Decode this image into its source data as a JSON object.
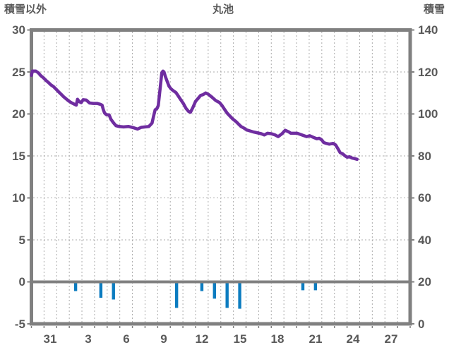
{
  "header": {
    "left_axis_title": "積雪以外",
    "chart_title": "丸池",
    "right_axis_title": "積雪"
  },
  "chart_data": {
    "type": "line+bar",
    "title": "丸池",
    "left_axis": {
      "title": "積雪以外",
      "ticks": [
        "30",
        "25",
        "20",
        "15",
        "10",
        "5",
        "0",
        "-5"
      ],
      "max": 30,
      "min": -5,
      "gridline_values": [
        25,
        20,
        15,
        10,
        5
      ],
      "zero_line_value": 0
    },
    "right_axis": {
      "title": "積雪",
      "ticks": [
        "140",
        "120",
        "100",
        "80",
        "60",
        "40",
        "20",
        "0"
      ],
      "max": 140,
      "min": 0
    },
    "x_axis": {
      "unit": "day",
      "num_days": 30,
      "start_day": "12/30",
      "tick_labels": [
        "31",
        "3",
        "6",
        "9",
        "12",
        "15",
        "18",
        "21",
        "24",
        "27"
      ],
      "tick_band_indices": [
        1,
        4,
        7,
        10,
        13,
        16,
        19,
        22,
        25,
        28
      ],
      "gridlines": "daily-dashed"
    },
    "line_series": {
      "name": "積雪",
      "axis": "right",
      "color": "#6F2DA0",
      "points_t_cm": [
        [
          0.0,
          118.4
        ],
        [
          0.08,
          120.4
        ],
        [
          0.35,
          120.4
        ],
        [
          0.55,
          119.6
        ],
        [
          0.75,
          118.2
        ],
        [
          0.95,
          117.2
        ],
        [
          1.15,
          116.0
        ],
        [
          1.35,
          115.0
        ],
        [
          1.55,
          113.8
        ],
        [
          1.75,
          113.0
        ],
        [
          1.95,
          111.8
        ],
        [
          2.15,
          110.6
        ],
        [
          2.35,
          109.4
        ],
        [
          2.55,
          108.2
        ],
        [
          2.75,
          107.2
        ],
        [
          2.95,
          106.2
        ],
        [
          3.15,
          105.4
        ],
        [
          3.35,
          104.8
        ],
        [
          3.55,
          104.2
        ],
        [
          3.65,
          107.0
        ],
        [
          3.8,
          105.8
        ],
        [
          3.95,
          105.4
        ],
        [
          4.1,
          106.8
        ],
        [
          4.35,
          106.6
        ],
        [
          4.6,
          105.2
        ],
        [
          4.9,
          105.0
        ],
        [
          5.2,
          105.0
        ],
        [
          5.45,
          104.6
        ],
        [
          5.6,
          104.2
        ],
        [
          5.7,
          102.0
        ],
        [
          5.8,
          100.4
        ],
        [
          5.95,
          99.6
        ],
        [
          6.15,
          99.6
        ],
        [
          6.3,
          97.4
        ],
        [
          6.5,
          95.8
        ],
        [
          6.7,
          94.4
        ],
        [
          6.95,
          94.0
        ],
        [
          7.3,
          93.8
        ],
        [
          7.7,
          94.0
        ],
        [
          8.1,
          93.4
        ],
        [
          8.4,
          92.8
        ],
        [
          8.7,
          93.6
        ],
        [
          9.0,
          93.8
        ],
        [
          9.3,
          94.0
        ],
        [
          9.55,
          95.6
        ],
        [
          9.7,
          99.6
        ],
        [
          9.8,
          102.0
        ],
        [
          9.95,
          102.6
        ],
        [
          10.05,
          104.0
        ],
        [
          10.15,
          109.6
        ],
        [
          10.25,
          115.2
        ],
        [
          10.33,
          119.6
        ],
        [
          10.42,
          120.4
        ],
        [
          10.5,
          120.0
        ],
        [
          10.6,
          118.0
        ],
        [
          10.75,
          115.6
        ],
        [
          10.9,
          113.2
        ],
        [
          11.05,
          112.0
        ],
        [
          11.25,
          111.0
        ],
        [
          11.45,
          110.2
        ],
        [
          11.65,
          108.4
        ],
        [
          11.85,
          106.6
        ],
        [
          12.05,
          104.8
        ],
        [
          12.25,
          102.6
        ],
        [
          12.45,
          101.2
        ],
        [
          12.6,
          100.8
        ],
        [
          12.8,
          103.2
        ],
        [
          13.0,
          106.0
        ],
        [
          13.2,
          107.4
        ],
        [
          13.4,
          108.8
        ],
        [
          13.6,
          109.2
        ],
        [
          13.8,
          110.0
        ],
        [
          14.0,
          109.4
        ],
        [
          14.3,
          108.0
        ],
        [
          14.6,
          106.4
        ],
        [
          14.9,
          105.4
        ],
        [
          15.1,
          104.0
        ],
        [
          15.3,
          102.2
        ],
        [
          15.5,
          100.4
        ],
        [
          15.75,
          98.8
        ],
        [
          15.95,
          97.6
        ],
        [
          16.2,
          96.4
        ],
        [
          16.4,
          95.2
        ],
        [
          16.6,
          94.0
        ],
        [
          16.85,
          93.2
        ],
        [
          17.05,
          92.4
        ],
        [
          17.6,
          91.4
        ],
        [
          18.2,
          90.6
        ],
        [
          18.45,
          90.0
        ],
        [
          18.7,
          90.8
        ],
        [
          19.0,
          90.6
        ],
        [
          19.3,
          90.0
        ],
        [
          19.55,
          89.2
        ],
        [
          19.85,
          90.6
        ],
        [
          20.0,
          91.6
        ],
        [
          20.1,
          92.2
        ],
        [
          20.4,
          91.4
        ],
        [
          20.55,
          90.8
        ],
        [
          21.05,
          90.8
        ],
        [
          21.5,
          89.8
        ],
        [
          21.8,
          89.2
        ],
        [
          22.05,
          89.6
        ],
        [
          22.35,
          88.8
        ],
        [
          22.6,
          88.2
        ],
        [
          22.8,
          88.4
        ],
        [
          23.0,
          87.6
        ],
        [
          23.15,
          86.4
        ],
        [
          23.35,
          86.0
        ],
        [
          23.6,
          85.6
        ],
        [
          23.9,
          86.0
        ],
        [
          24.1,
          85.2
        ],
        [
          24.3,
          83.2
        ],
        [
          24.45,
          81.6
        ],
        [
          24.65,
          81.0
        ],
        [
          24.85,
          80.0
        ],
        [
          25.0,
          79.4
        ],
        [
          25.2,
          79.6
        ],
        [
          25.4,
          79.0
        ],
        [
          25.55,
          78.8
        ],
        [
          25.8,
          78.4
        ]
      ]
    },
    "bar_series": {
      "name": "積雪以外",
      "axis": "left",
      "color": "#0C7CC0",
      "bars": [
        {
          "day": "1/2",
          "band": 3,
          "value": -1.1
        },
        {
          "day": "1/4",
          "band": 5,
          "value": -1.9
        },
        {
          "day": "1/5",
          "band": 6,
          "value": -2.1
        },
        {
          "day": "1/10",
          "band": 11,
          "value": -3.1
        },
        {
          "day": "1/12",
          "band": 13,
          "value": -1.1
        },
        {
          "day": "1/13",
          "band": 14,
          "value": -2.0
        },
        {
          "day": "1/14",
          "band": 15,
          "value": -3.1
        },
        {
          "day": "1/15",
          "band": 16,
          "value": -3.2
        },
        {
          "day": "1/20",
          "band": 21,
          "value": -1.0
        },
        {
          "day": "1/21",
          "band": 22,
          "value": -1.0
        }
      ]
    },
    "colors": {
      "frame": "#808080",
      "zero_line": "#808080",
      "gridline": "#ABABAB",
      "text": "#595959",
      "line": "#6F2DA0",
      "bar": "#0C7CC0"
    }
  }
}
